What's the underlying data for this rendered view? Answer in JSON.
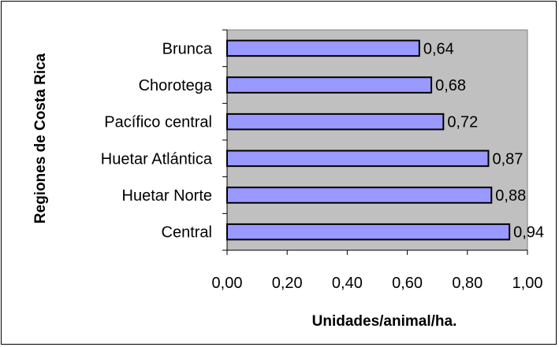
{
  "chart_data": {
    "type": "bar",
    "orientation": "horizontal",
    "categories": [
      "Brunca",
      "Chorotega",
      "Pacífico central",
      "Huetar Atlántica",
      "Huetar Norte",
      "Central"
    ],
    "values": [
      0.64,
      0.68,
      0.72,
      0.87,
      0.88,
      0.94
    ],
    "data_labels": [
      "0,64",
      "0,68",
      "0,72",
      "0,87",
      "0,88",
      "0,94"
    ],
    "title": "",
    "xlabel": "Unidades/animal/ha.",
    "ylabel": "Regiones de Costa Rica",
    "xlim": [
      0,
      1
    ],
    "x_ticks": [
      0,
      0.2,
      0.4,
      0.6,
      0.8,
      1.0
    ],
    "x_tick_labels": [
      "0,00",
      "0,20",
      "0,40",
      "0,60",
      "0,80",
      "1,00"
    ],
    "grid": false,
    "legend": "none",
    "colors": {
      "bar_fill": "#9999ff",
      "bar_stroke": "#000000",
      "plot_background": "#c0c0c0"
    }
  }
}
